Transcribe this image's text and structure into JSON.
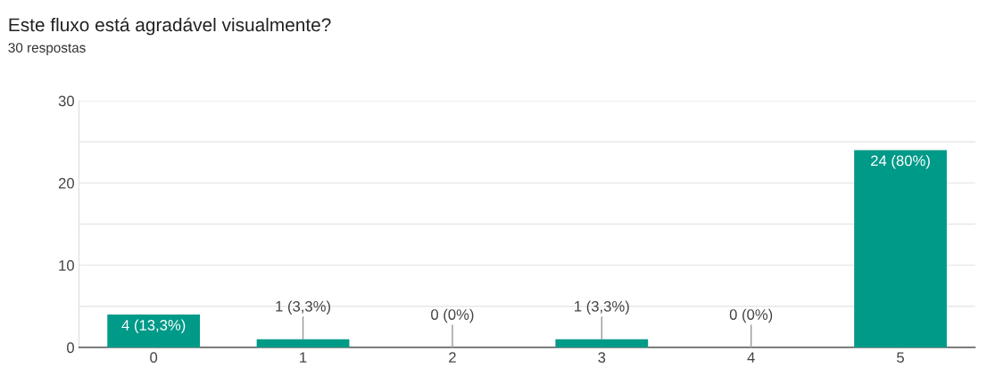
{
  "chart_data": {
    "type": "bar",
    "title": "Este fluxo está agradável visualmente?",
    "subtitle": "30 respostas",
    "categories": [
      "0",
      "1",
      "2",
      "3",
      "4",
      "5"
    ],
    "values": [
      4,
      1,
      0,
      1,
      0,
      24
    ],
    "value_labels": [
      "4 (13,3%)",
      "1 (3,3%)",
      "0 (0%)",
      "1 (3,3%)",
      "0 (0%)",
      "24 (80%)"
    ],
    "color": "#009a88",
    "ylim": [
      0,
      30
    ],
    "yticks": [
      0,
      {
        "value": 5,
        "label": null
      },
      10,
      {
        "value": 15,
        "label": null
      },
      20,
      {
        "value": 25,
        "label": null
      },
      30
    ],
    "grid": "y"
  }
}
